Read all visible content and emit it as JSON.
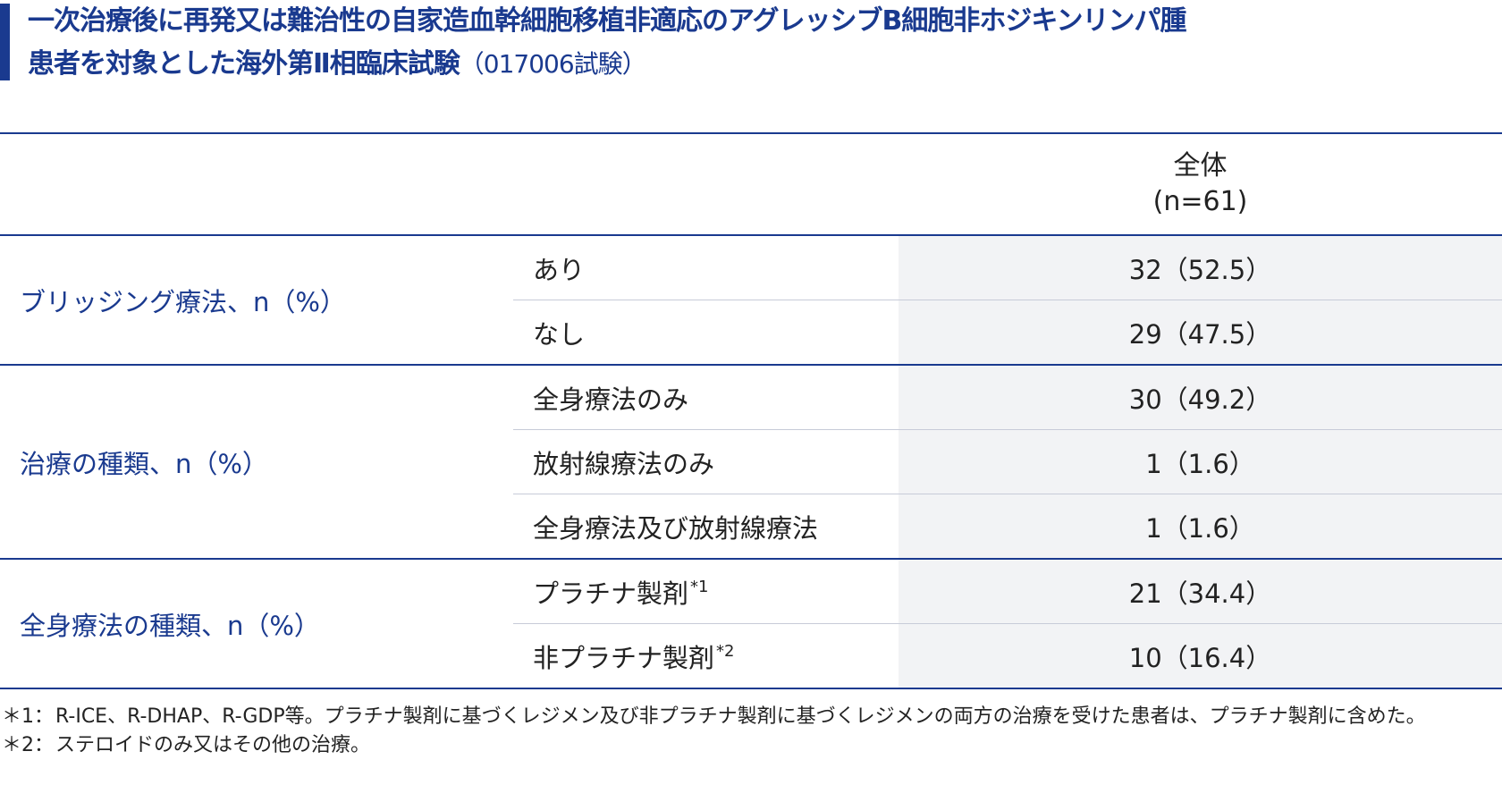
{
  "title": {
    "line1": "一次治療後に再発又は難治性の自家造血幹細胞移植非適応のアグレッシブB細胞非ホジキンリンパ腫",
    "line2": "患者を対象とした海外第Ⅱ相臨床試験",
    "line2_suffix": "（017006試験）"
  },
  "table": {
    "header": {
      "line1": "全体",
      "line2": "(n=61)"
    },
    "groups": [
      {
        "label": "ブリッジング療法、n（%）",
        "rows": [
          {
            "label": "あり",
            "value": "32（52.5）"
          },
          {
            "label": "なし",
            "value": "29（47.5）"
          }
        ]
      },
      {
        "label": "治療の種類、n（%）",
        "rows": [
          {
            "label": "全身療法のみ",
            "value": "30（49.2）"
          },
          {
            "label": "放射線療法のみ",
            "value": "1（1.6）"
          },
          {
            "label": "全身療法及び放射線療法",
            "value": "1（1.6）"
          }
        ]
      },
      {
        "label": "全身療法の種類、n（%）",
        "rows": [
          {
            "label": "プラチナ製剤",
            "mark": "*1",
            "value": "21（34.4）"
          },
          {
            "label": "非プラチナ製剤",
            "mark": "*2",
            "value": "10（16.4）"
          }
        ]
      }
    ]
  },
  "footnotes": [
    {
      "label": "＊1：",
      "text": "R-ICE、R-DHAP、R-GDP等。プラチナ製剤に基づくレジメン及び非プラチナ製剤に基づくレジメンの両方の治療を受けた患者は、プラチナ製剤に含めた。"
    },
    {
      "label": "＊2：",
      "text": "ステロイドのみ又はその他の治療。"
    }
  ],
  "colors": {
    "accent": "#1a3a8f",
    "value_bg": "#f2f3f5",
    "row_divider": "#c7cbd8"
  }
}
